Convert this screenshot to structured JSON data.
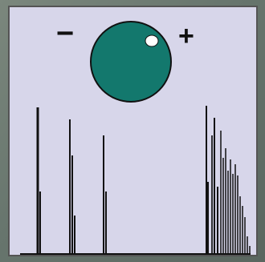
{
  "labels": {
    "minus": "−",
    "plus": "+"
  },
  "colors": {
    "background": "#d7d6ea",
    "ball": "#13786d",
    "highlight": "#ffffff",
    "stroke": "#111111"
  }
}
